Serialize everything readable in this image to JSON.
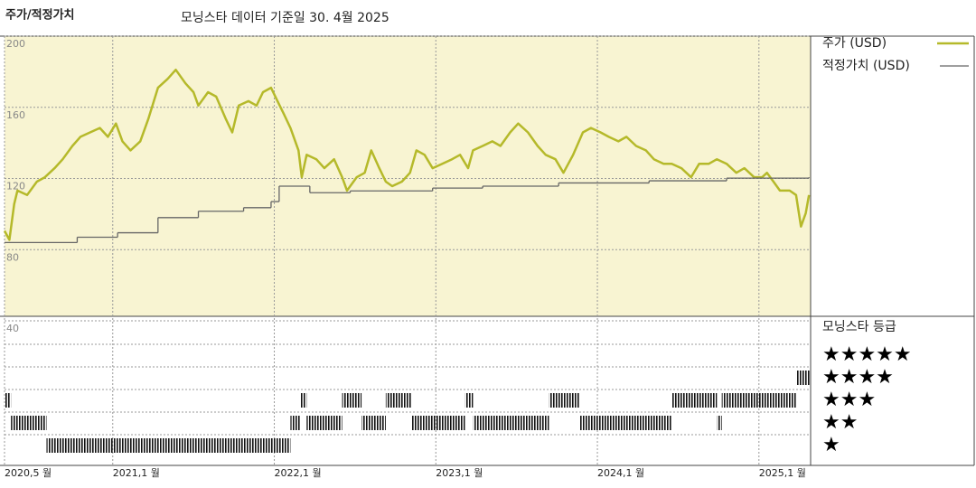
{
  "title": "주가/적정가치",
  "subtitle": "모닝스타 데이터 기준일 30. 4월 2025",
  "chart_data": [
    {
      "type": "line",
      "xlim": [
        2020.33,
        2025.32
      ],
      "ylim": [
        40,
        200
      ],
      "xticks": [
        {
          "value": 2020.33,
          "label": "2020,5 월"
        },
        {
          "value": 2021,
          "label": "2021,1 월"
        },
        {
          "value": 2022,
          "label": "2022,1 월"
        },
        {
          "value": 2023,
          "label": "2023,1 월"
        },
        {
          "value": 2024,
          "label": "2024,1 월"
        },
        {
          "value": 2025,
          "label": "2025,1 월"
        }
      ],
      "yticks": [
        40,
        80,
        120,
        160,
        200
      ],
      "grid": true,
      "series": [
        {
          "name": "주가 (USD)",
          "color": "#b5b92a",
          "x": [
            2020.33,
            2020.36,
            2020.39,
            2020.41,
            2020.47,
            2020.53,
            2020.58,
            2020.64,
            2020.69,
            2020.75,
            2020.8,
            2020.86,
            2020.92,
            2020.97,
            2021.02,
            2021.06,
            2021.11,
            2021.17,
            2021.22,
            2021.28,
            2021.34,
            2021.39,
            2021.45,
            2021.5,
            2021.53,
            2021.59,
            2021.64,
            2021.7,
            2021.74,
            2021.78,
            2021.84,
            2021.89,
            2021.93,
            2021.98,
            2022.02,
            2022.06,
            2022.1,
            2022.15,
            2022.17,
            2022.2,
            2022.26,
            2022.31,
            2022.37,
            2022.42,
            2022.45,
            2022.51,
            2022.56,
            2022.6,
            2022.65,
            2022.69,
            2022.73,
            2022.79,
            2022.84,
            2022.88,
            2022.93,
            2022.98,
            2023.04,
            2023.1,
            2023.15,
            2023.2,
            2023.23,
            2023.29,
            2023.35,
            2023.4,
            2023.46,
            2023.51,
            2023.57,
            2023.63,
            2023.68,
            2023.74,
            2023.79,
            2023.85,
            2023.91,
            2023.96,
            2024.02,
            2024.07,
            2024.13,
            2024.18,
            2024.24,
            2024.3,
            2024.35,
            2024.41,
            2024.46,
            2024.52,
            2024.58,
            2024.63,
            2024.69,
            2024.74,
            2024.8,
            2024.86,
            2024.91,
            2024.97,
            2025.02,
            2025.05,
            2025.09,
            2025.13,
            2025.19,
            2025.23,
            2025.26,
            2025.29,
            2025.31
          ],
          "values": [
            90.6,
            85.5,
            105.6,
            113.2,
            110.7,
            118.2,
            120.7,
            125.8,
            130.8,
            138.3,
            143.4,
            145.9,
            148.4,
            143.4,
            150.9,
            140.9,
            135.8,
            140.9,
            153.4,
            171,
            176,
            181.1,
            173.5,
            168.5,
            161,
            168.5,
            166,
            153.4,
            145.9,
            161,
            163.5,
            161,
            168.5,
            171,
            163.5,
            156,
            148.4,
            135.8,
            120.7,
            133.3,
            130.8,
            125.8,
            130.8,
            120.7,
            113.2,
            120.7,
            123.2,
            135.8,
            125.8,
            118.2,
            115.7,
            118.2,
            123.2,
            135.8,
            133.3,
            125.8,
            128.3,
            130.8,
            133.3,
            125.8,
            135.8,
            138.3,
            140.9,
            138.3,
            145.9,
            150.9,
            145.9,
            138.3,
            133.3,
            130.8,
            123.2,
            133.3,
            145.9,
            148.4,
            145.9,
            143.4,
            140.9,
            143.4,
            138.3,
            135.8,
            130.8,
            128.3,
            128.3,
            125.8,
            120.7,
            128.3,
            128.3,
            130.8,
            128.3,
            123.2,
            125.8,
            120.7,
            120.7,
            123.2,
            118.2,
            113.2,
            113.2,
            110.7,
            93,
            100.5,
            110.7
          ]
        },
        {
          "name": "적정가치 (USD)",
          "color": "#666666",
          "drawstyle": "steps-post",
          "x": [
            2020.33,
            2020.78,
            2021.03,
            2021.28,
            2021.53,
            2021.81,
            2021.98,
            2022.03,
            2022.22,
            2022.47,
            2022.98,
            2023.29,
            2023.76,
            2024.32,
            2024.8,
            2025.31
          ],
          "values": [
            84,
            87,
            89.5,
            98,
            101.6,
            103.6,
            107,
            115.7,
            112,
            113,
            114.6,
            115.7,
            117.5,
            118.7,
            120.2,
            120.7
          ]
        }
      ]
    },
    {
      "type": "rating",
      "title": "모닝스타 등급",
      "color": "#111111",
      "xlim": [
        2020.33,
        2025.32
      ],
      "yticks": [
        {
          "value": 5,
          "label": "★★★★★"
        },
        {
          "value": 4,
          "label": "★★★★"
        },
        {
          "value": 3,
          "label": "★★★"
        },
        {
          "value": 2,
          "label": "★★"
        },
        {
          "value": 1,
          "label": "★"
        }
      ],
      "x": [
        2020.33,
        2020.37,
        2020.59,
        2022.1,
        2022.16,
        2022.2,
        2022.42,
        2022.54,
        2022.69,
        2022.85,
        2023.18,
        2023.23,
        2023.7,
        2023.89,
        2024.46,
        2024.74,
        2024.77,
        2025.23
      ],
      "values": [
        3,
        2,
        1,
        2,
        3,
        2,
        3,
        2,
        3,
        2,
        3,
        2,
        3,
        2,
        3,
        2,
        3,
        4
      ]
    }
  ]
}
